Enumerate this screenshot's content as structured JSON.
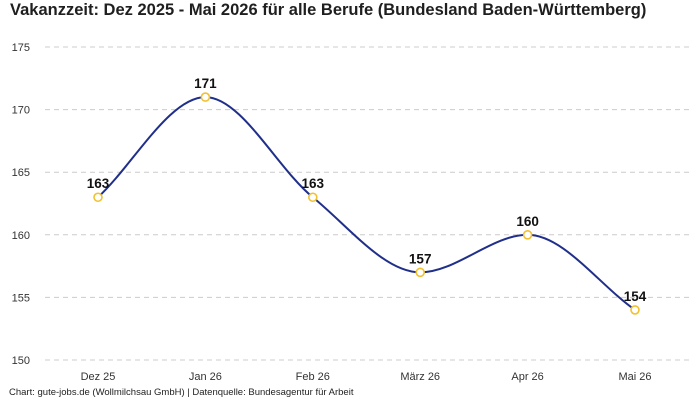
{
  "page": {
    "footer": "Chart: gute-jobs.de (Wollmilchsau GmbH) | Datenquelle: Bundesagentur für Arbeit"
  },
  "chart_data": {
    "type": "line",
    "title": "Vakanzzeit: Dez 2025 - Mai 2026 für alle Berufe (Bundesland Baden-Württemberg)",
    "xlabel": "",
    "ylabel": "",
    "categories": [
      "Dez 25",
      "Jan 26",
      "Feb 26",
      "März 26",
      "Apr 26",
      "Mai 26"
    ],
    "series": [
      {
        "values": [
          163,
          171,
          163,
          157,
          160,
          154
        ]
      }
    ],
    "ylim": [
      150,
      175
    ],
    "yticks": [
      150,
      155,
      160,
      165,
      170,
      175
    ],
    "grid": true,
    "line_style": "smoothed",
    "colors": {
      "line": "#1f2f8a",
      "marker_fill": "#ffffff",
      "marker_stroke": "#f2c12e",
      "grid": "#cccccc"
    }
  }
}
